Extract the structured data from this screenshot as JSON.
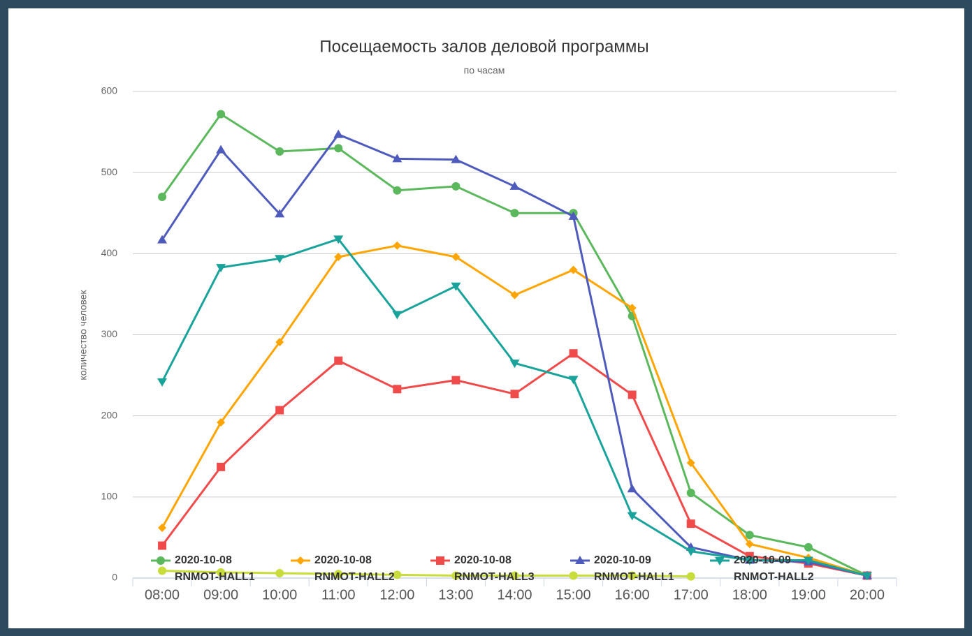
{
  "chart_data": {
    "type": "line",
    "title": "Посещаемость залов деловой программы",
    "subtitle": "по часам",
    "ylabel": "количество человек",
    "categories": [
      "08:00",
      "09:00",
      "10:00",
      "11:00",
      "12:00",
      "13:00",
      "14:00",
      "15:00",
      "16:00",
      "17:00",
      "18:00",
      "19:00",
      "20:00"
    ],
    "ylim": [
      0,
      600
    ],
    "yticks": [
      0,
      100,
      200,
      300,
      400,
      500,
      600
    ],
    "grid": true,
    "legend": "bottom",
    "series": [
      {
        "name": "2020-10-08 RNMOT-HALL1",
        "color": "#5cb85c",
        "marker": "circle",
        "values": [
          470,
          572,
          526,
          530,
          478,
          483,
          450,
          450,
          323,
          105,
          53,
          38,
          3
        ]
      },
      {
        "name": "2020-10-08 RNMOT-HALL2",
        "color": "#ffa500",
        "marker": "diamond",
        "values": [
          62,
          192,
          291,
          396,
          410,
          396,
          349,
          380,
          333,
          142,
          42,
          25,
          3
        ]
      },
      {
        "name": "2020-10-08 RNMOT-HALL3",
        "color": "#ef4b4b",
        "marker": "square",
        "values": [
          40,
          137,
          207,
          268,
          233,
          244,
          227,
          277,
          226,
          67,
          27,
          18,
          3
        ]
      },
      {
        "name": "2020-10-09 RNMOT-HALL1",
        "color": "#4e5bbd",
        "marker": "triangle",
        "values": [
          417,
          528,
          449,
          547,
          517,
          516,
          483,
          446,
          110,
          38,
          22,
          20,
          3
        ]
      },
      {
        "name": "2020-10-09 RNMOT-HALL2",
        "color": "#1aa39a",
        "marker": "triangle-down",
        "values": [
          242,
          383,
          394,
          418,
          325,
          360,
          265,
          245,
          77,
          33,
          22,
          22,
          3
        ]
      },
      {
        "color": "#c8dc3c",
        "marker": "circle",
        "values": [
          9,
          7,
          6,
          5,
          4,
          3,
          3,
          3,
          3,
          2,
          null,
          null,
          null
        ]
      }
    ]
  }
}
